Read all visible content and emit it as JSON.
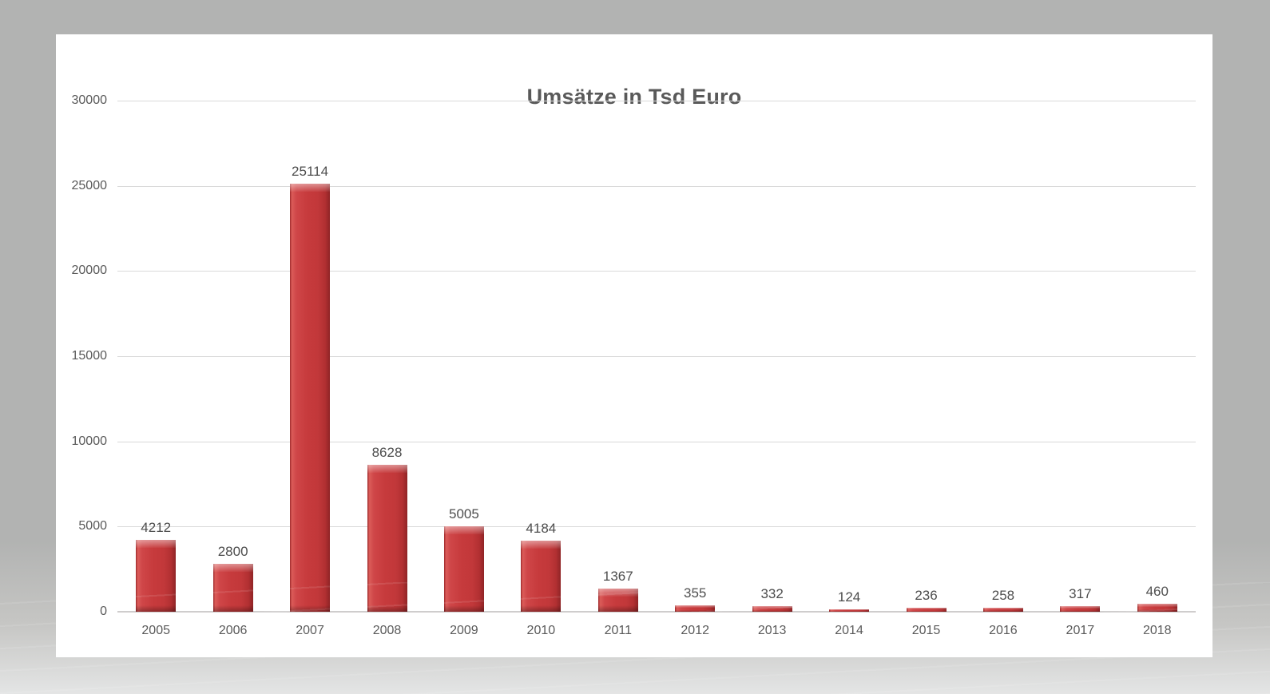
{
  "window": {
    "background_top_color": "#b2b3b2",
    "background_bottom_color": "#e4e5e5",
    "panel_color": "#ffffff"
  },
  "chart_data": {
    "type": "bar",
    "title": "Umsätze in Tsd Euro",
    "categories": [
      "2005",
      "2006",
      "2007",
      "2008",
      "2009",
      "2010",
      "2011",
      "2012",
      "2013",
      "2014",
      "2015",
      "2016",
      "2017",
      "2018"
    ],
    "values": [
      4212,
      2800,
      25114,
      8628,
      5005,
      4184,
      1367,
      355,
      332,
      124,
      236,
      258,
      317,
      460
    ],
    "data_labels": [
      "4212",
      "2800",
      "25114",
      "8628",
      "5005",
      "4184",
      "1367",
      "355",
      "332",
      "124",
      "236",
      "258",
      "317",
      "460"
    ],
    "xlabel": "",
    "ylabel": "",
    "ylim": [
      0,
      30000
    ],
    "yticks": [
      0,
      5000,
      10000,
      15000,
      20000,
      25000,
      30000
    ],
    "ytick_labels": [
      "0",
      "5000",
      "10000",
      "15000",
      "20000",
      "25000",
      "30000"
    ],
    "grid": true,
    "legend": "none",
    "bar_color": "#c63a3c",
    "bar_edge_dark": "#8f2426",
    "bar_bevel_light": "#e8706c",
    "title_color": "#595959",
    "tick_label_color": "#595959",
    "data_label_color": "#4d4d4d",
    "gridline_color": "#d9d9d9",
    "axis_line_color": "#cfcdcd"
  }
}
